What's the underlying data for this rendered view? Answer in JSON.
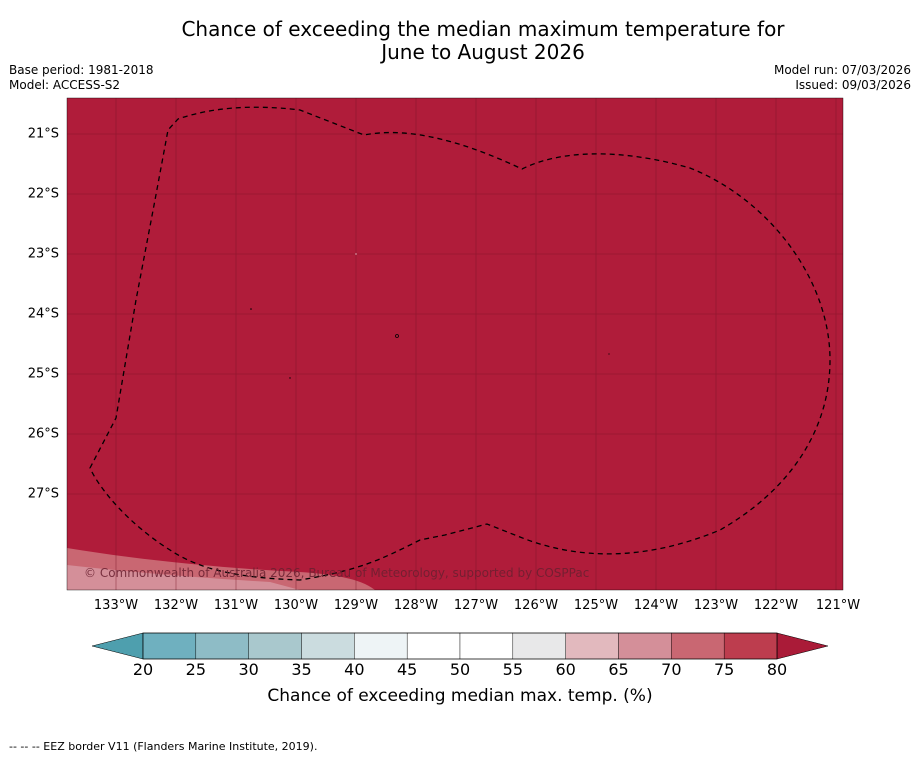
{
  "title": {
    "line1": "Chance of exceeding the median maximum temperature for",
    "line2": "June to August 2026"
  },
  "meta": {
    "base_period": "Base period: 1981-2018",
    "model": "Model: ACCESS-S2",
    "model_run": "Model run: 07/03/2026",
    "issued": "Issued: 09/03/2026"
  },
  "map": {
    "lat_labels": [
      "21°S",
      "22°S",
      "23°S",
      "24°S",
      "25°S",
      "26°S",
      "27°S"
    ],
    "lon_labels": [
      "133°W",
      "132°W",
      "131°W",
      "130°W",
      "129°W",
      "128°W",
      "127°W",
      "126°W",
      "125°W",
      "124°W",
      "123°W",
      "122°W",
      "121°W"
    ],
    "copyright": "© Commonwealth of Australia 2026, Bureau of Meteorology, supported by COSPPac",
    "dominant_color": "#b01c3a"
  },
  "colorbar": {
    "ticks": [
      "20",
      "25",
      "30",
      "35",
      "40",
      "45",
      "50",
      "55",
      "60",
      "65",
      "70",
      "75",
      "80"
    ],
    "colors": [
      "#6fb0bf",
      "#8ebcc6",
      "#a9c8cd",
      "#cbdcdf",
      "#eef4f6",
      "#ffffff",
      "#ffffff",
      "#e8e8e9",
      "#e2b9be",
      "#d48f99",
      "#c96772",
      "#bd3d4e"
    ],
    "under_color": "#4e9fae",
    "over_color": "#aa1b38",
    "label": "Chance of exceeding median max. temp. (%)"
  },
  "footnote": "--  --  -- EEZ border V11 (Flanders Marine Institute, 2019)."
}
